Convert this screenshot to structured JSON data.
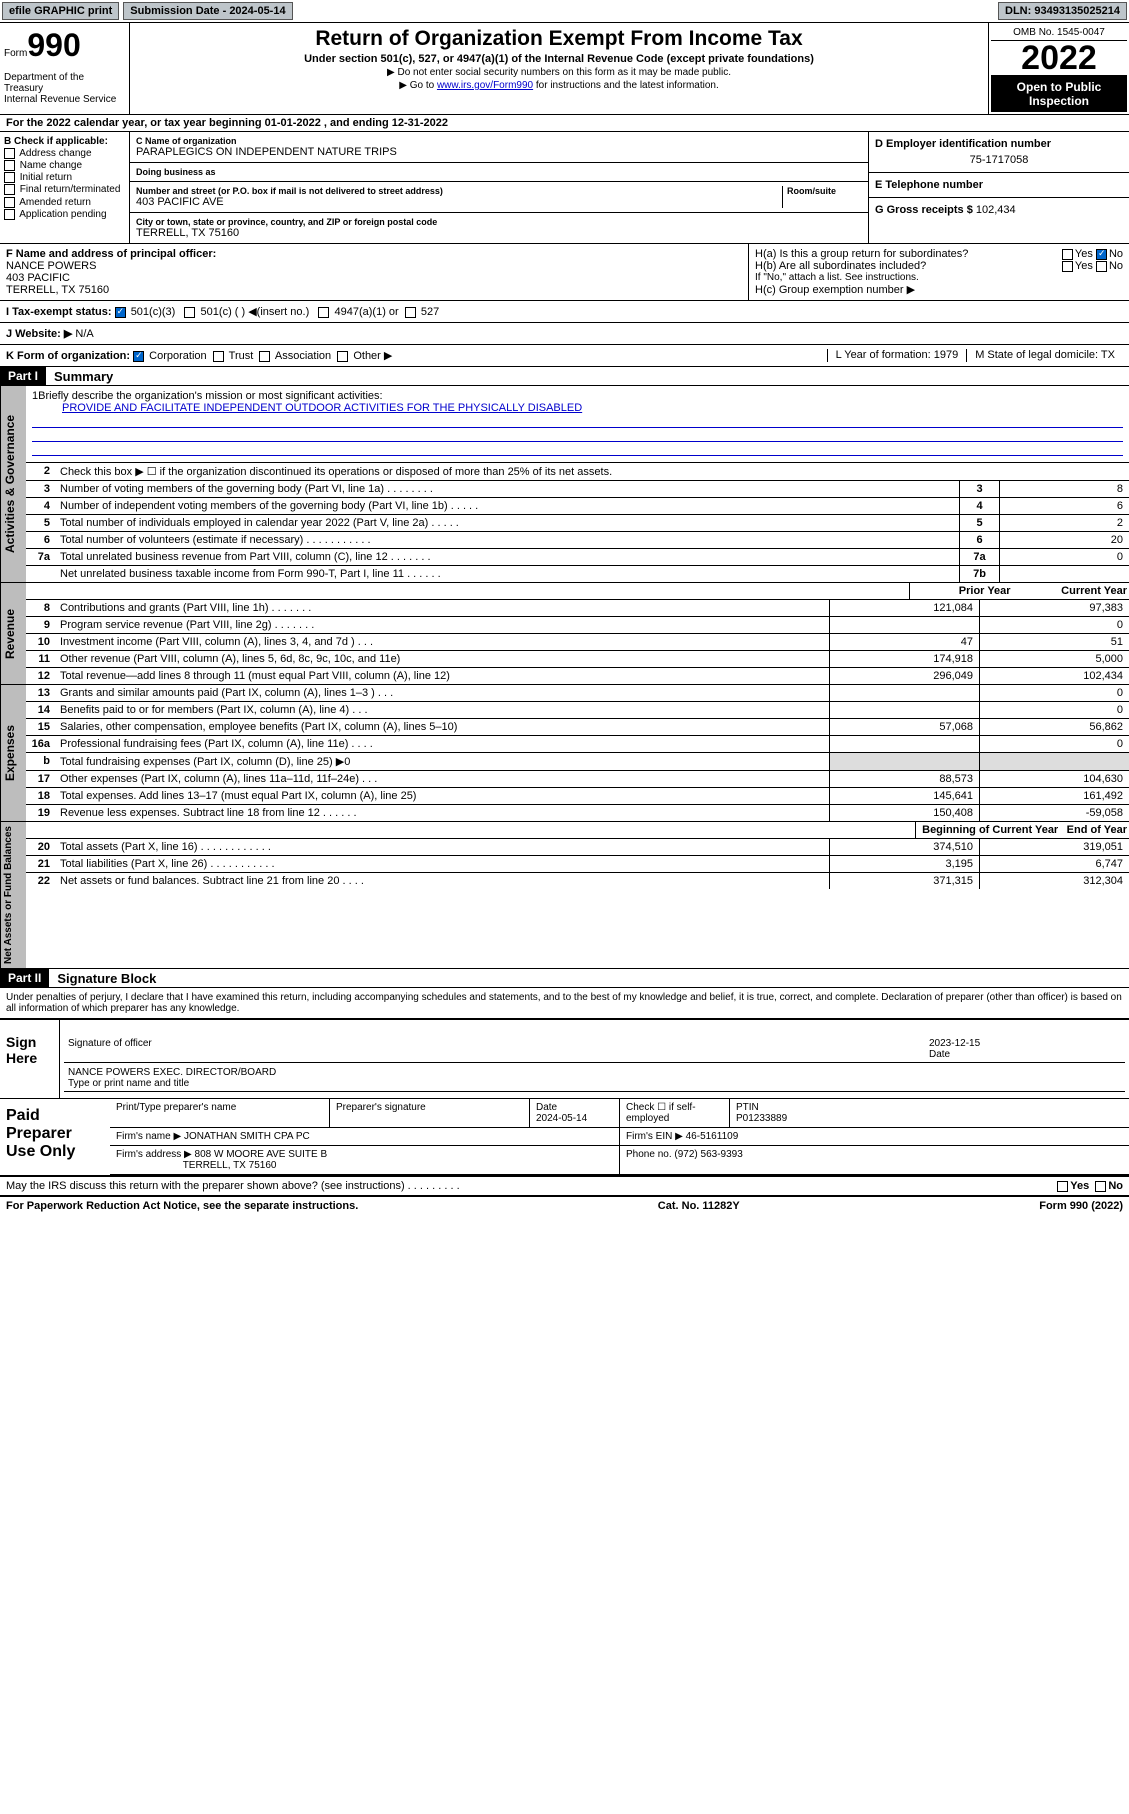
{
  "topbar": {
    "efile": "efile GRAPHIC print",
    "subdate_label": "Submission Date - 2024-05-14",
    "dln": "DLN: 93493135025214"
  },
  "header": {
    "form_prefix": "Form",
    "form_number": "990",
    "title": "Return of Organization Exempt From Income Tax",
    "subtitle": "Under section 501(c), 527, or 4947(a)(1) of the Internal Revenue Code (except private foundations)",
    "instr1": "▶ Do not enter social security numbers on this form as it may be made public.",
    "instr2_pre": "▶ Go to ",
    "instr2_link": "www.irs.gov/Form990",
    "instr2_post": " for instructions and the latest information.",
    "dept": "Department of the Treasury\nInternal Revenue Service",
    "omb": "OMB No. 1545-0047",
    "year": "2022",
    "open_public": "Open to Public Inspection"
  },
  "period": "For the 2022 calendar year, or tax year beginning 01-01-2022    , and ending 12-31-2022",
  "section_b": {
    "label": "B Check if applicable:",
    "items": [
      "Address change",
      "Name change",
      "Initial return",
      "Final return/terminated",
      "Amended return",
      "Application pending"
    ]
  },
  "section_c": {
    "name_label": "C Name of organization",
    "name": "PARAPLEGICS ON INDEPENDENT NATURE TRIPS",
    "dba_label": "Doing business as",
    "addr_label": "Number and street (or P.O. box if mail is not delivered to street address)",
    "addr": "403 PACIFIC AVE",
    "room_label": "Room/suite",
    "city_label": "City or town, state or province, country, and ZIP or foreign postal code",
    "city": "TERRELL, TX  75160"
  },
  "section_d": {
    "label": "D Employer identification number",
    "value": "75-1717058"
  },
  "section_e": {
    "label": "E Telephone number",
    "value": ""
  },
  "section_g": {
    "label": "G Gross receipts $",
    "value": "102,434"
  },
  "section_f": {
    "label": "F  Name and address of principal officer:",
    "name": "NANCE POWERS",
    "addr": "403 PACIFIC",
    "city": "TERRELL, TX  75160"
  },
  "section_h": {
    "ha": "H(a)  Is this a group return for subordinates?",
    "hb": "H(b)  Are all subordinates included?",
    "hb_note": "If \"No,\" attach a list. See instructions.",
    "hc": "H(c)  Group exemption number ▶",
    "yes": "Yes",
    "no": "No"
  },
  "row_i": {
    "label": "I    Tax-exempt status:",
    "opt1": "501(c)(3)",
    "opt2": "501(c) (   ) ◀(insert no.)",
    "opt3": "4947(a)(1) or",
    "opt4": "527"
  },
  "row_j": {
    "label": "J   Website: ▶",
    "value": "N/A"
  },
  "row_k": {
    "label": "K Form of organization:",
    "opts": [
      "Corporation",
      "Trust",
      "Association",
      "Other ▶"
    ],
    "l": "L Year of formation: 1979",
    "m": "M State of legal domicile: TX"
  },
  "parts": {
    "p1": "Part I",
    "p1_title": "Summary",
    "p2": "Part II",
    "p2_title": "Signature Block"
  },
  "vlabels": {
    "ag": "Activities & Governance",
    "rev": "Revenue",
    "exp": "Expenses",
    "na": "Net Assets or Fund Balances"
  },
  "summary": {
    "line1_label": "Briefly describe the organization's mission or most significant activities:",
    "line1_text": "PROVIDE AND FACILITATE INDEPENDENT OUTDOOR ACTIVITIES FOR THE PHYSICALLY DISABLED",
    "line2": "Check this box ▶ ☐  if the organization discontinued its operations or disposed of more than 25% of its net assets.",
    "lines_gov": [
      {
        "n": "3",
        "d": "Number of voting members of the governing body (Part VI, line 1a)   .   .   .   .   .   .   .   .",
        "b": "3",
        "v": "8"
      },
      {
        "n": "4",
        "d": "Number of independent voting members of the governing body (Part VI, line 1b)  .   .   .   .   .",
        "b": "4",
        "v": "6"
      },
      {
        "n": "5",
        "d": "Total number of individuals employed in calendar year 2022 (Part V, line 2a)   .   .   .   .   .",
        "b": "5",
        "v": "2"
      },
      {
        "n": "6",
        "d": "Total number of volunteers (estimate if necessary)   .   .   .   .   .   .   .   .   .   .   .",
        "b": "6",
        "v": "20"
      },
      {
        "n": "7a",
        "d": "Total unrelated business revenue from Part VIII, column (C), line 12  .   .   .   .   .   .   .",
        "b": "7a",
        "v": "0"
      },
      {
        "n": "",
        "d": "Net unrelated business taxable income from Form 990-T, Part I, line 11  .   .   .   .   .   .",
        "b": "7b",
        "v": ""
      }
    ],
    "col_prior": "Prior Year",
    "col_current": "Current Year",
    "lines_rev": [
      {
        "n": "8",
        "d": "Contributions and grants (Part VIII, line 1h)   .   .   .   .   .   .   .",
        "p": "121,084",
        "c": "97,383"
      },
      {
        "n": "9",
        "d": "Program service revenue (Part VIII, line 2g)   .   .   .   .   .   .   .",
        "p": "",
        "c": "0"
      },
      {
        "n": "10",
        "d": "Investment income (Part VIII, column (A), lines 3, 4, and 7d )   .   .   .",
        "p": "47",
        "c": "51"
      },
      {
        "n": "11",
        "d": "Other revenue (Part VIII, column (A), lines 5, 6d, 8c, 9c, 10c, and 11e)",
        "p": "174,918",
        "c": "5,000"
      },
      {
        "n": "12",
        "d": "Total revenue—add lines 8 through 11 (must equal Part VIII, column (A), line 12)",
        "p": "296,049",
        "c": "102,434"
      }
    ],
    "lines_exp": [
      {
        "n": "13",
        "d": "Grants and similar amounts paid (Part IX, column (A), lines 1–3 )   .   .   .",
        "p": "",
        "c": "0"
      },
      {
        "n": "14",
        "d": "Benefits paid to or for members (Part IX, column (A), line 4)   .   .   .",
        "p": "",
        "c": "0"
      },
      {
        "n": "15",
        "d": "Salaries, other compensation, employee benefits (Part IX, column (A), lines 5–10)",
        "p": "57,068",
        "c": "56,862"
      },
      {
        "n": "16a",
        "d": "Professional fundraising fees (Part IX, column (A), line 11e)   .   .   .   .",
        "p": "",
        "c": "0"
      },
      {
        "n": "b",
        "d": "Total fundraising expenses (Part IX, column (D), line 25) ▶0",
        "p": "",
        "c": ""
      },
      {
        "n": "17",
        "d": "Other expenses (Part IX, column (A), lines 11a–11d, 11f–24e)   .   .   .",
        "p": "88,573",
        "c": "104,630"
      },
      {
        "n": "18",
        "d": "Total expenses. Add lines 13–17 (must equal Part IX, column (A), line 25)",
        "p": "145,641",
        "c": "161,492"
      },
      {
        "n": "19",
        "d": "Revenue less expenses. Subtract line 18 from line 12  .   .   .   .   .   .",
        "p": "150,408",
        "c": "-59,058"
      }
    ],
    "col_begin": "Beginning of Current Year",
    "col_end": "End of Year",
    "lines_na": [
      {
        "n": "20",
        "d": "Total assets (Part X, line 16)  .   .   .   .   .   .   .   .   .   .   .   .",
        "p": "374,510",
        "c": "319,051"
      },
      {
        "n": "21",
        "d": "Total liabilities (Part X, line 26)  .   .   .   .   .   .   .   .   .   .   .",
        "p": "3,195",
        "c": "6,747"
      },
      {
        "n": "22",
        "d": "Net assets or fund balances. Subtract line 21 from line 20  .   .   .   .",
        "p": "371,315",
        "c": "312,304"
      }
    ]
  },
  "signature": {
    "declaration": "Under penalties of perjury, I declare that I have examined this return, including accompanying schedules and statements, and to the best of my knowledge and belief, it is true, correct, and complete. Declaration of preparer (other than officer) is based on all information of which preparer has any knowledge.",
    "sign_here": "Sign Here",
    "sig_officer": "Signature of officer",
    "date": "Date",
    "date_val": "2023-12-15",
    "name_title": "NANCE POWERS  EXEC. DIRECTOR/BOARD",
    "name_title_label": "Type or print name and title"
  },
  "paid": {
    "label": "Paid Preparer Use Only",
    "h1": "Print/Type preparer's name",
    "h2": "Preparer's signature",
    "h3": "Date",
    "h3v": "2024-05-14",
    "h4": "Check ☐ if self-employed",
    "h5": "PTIN",
    "h5v": "P01233889",
    "firm_name_label": "Firm's name    ▶",
    "firm_name": "JONATHAN SMITH CPA PC",
    "firm_ein_label": "Firm's EIN ▶",
    "firm_ein": "46-5161109",
    "firm_addr_label": "Firm's address ▶",
    "firm_addr": "808 W MOORE AVE SUITE B",
    "firm_city": "TERRELL, TX  75160",
    "phone_label": "Phone no.",
    "phone": "(972) 563-9393",
    "discuss": "May the IRS discuss this return with the preparer shown above? (see instructions)   .   .   .   .   .   .   .   .   ."
  },
  "footer": {
    "left": "For Paperwork Reduction Act Notice, see the separate instructions.",
    "mid": "Cat. No. 11282Y",
    "right": "Form 990 (2022)"
  }
}
